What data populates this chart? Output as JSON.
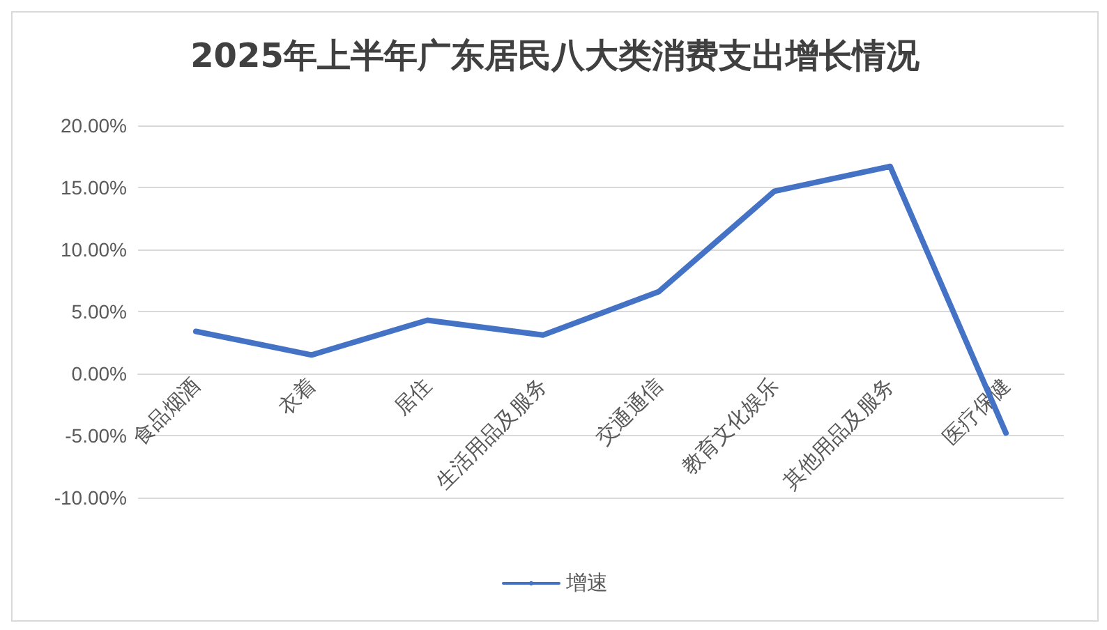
{
  "chart_data": {
    "type": "line",
    "title": "2025年上半年广东居民八大类消费支出增长情况",
    "categories": [
      "食品烟酒",
      "衣着",
      "居住",
      "生活用品及服务",
      "交通通信",
      "教育文化娱乐",
      "其他用品及服务",
      "医疗保健"
    ],
    "series": [
      {
        "name": "增速",
        "color": "#4472c4",
        "values": [
          3.4,
          1.5,
          4.3,
          3.1,
          6.6,
          14.7,
          16.7,
          -4.8
        ]
      }
    ],
    "ylim": [
      -10,
      20
    ],
    "yticks": [
      {
        "value": -10,
        "label": "-10.00%"
      },
      {
        "value": -5,
        "label": "-5.00%"
      },
      {
        "value": 0,
        "label": "0.00%"
      },
      {
        "value": 5,
        "label": "5.00%"
      },
      {
        "value": 10,
        "label": "10.00%"
      },
      {
        "value": 15,
        "label": "15.00%"
      },
      {
        "value": 20,
        "label": "20.00%"
      }
    ],
    "grid": "y",
    "legend": "bottom",
    "marker": "none",
    "line_style": "solid"
  }
}
